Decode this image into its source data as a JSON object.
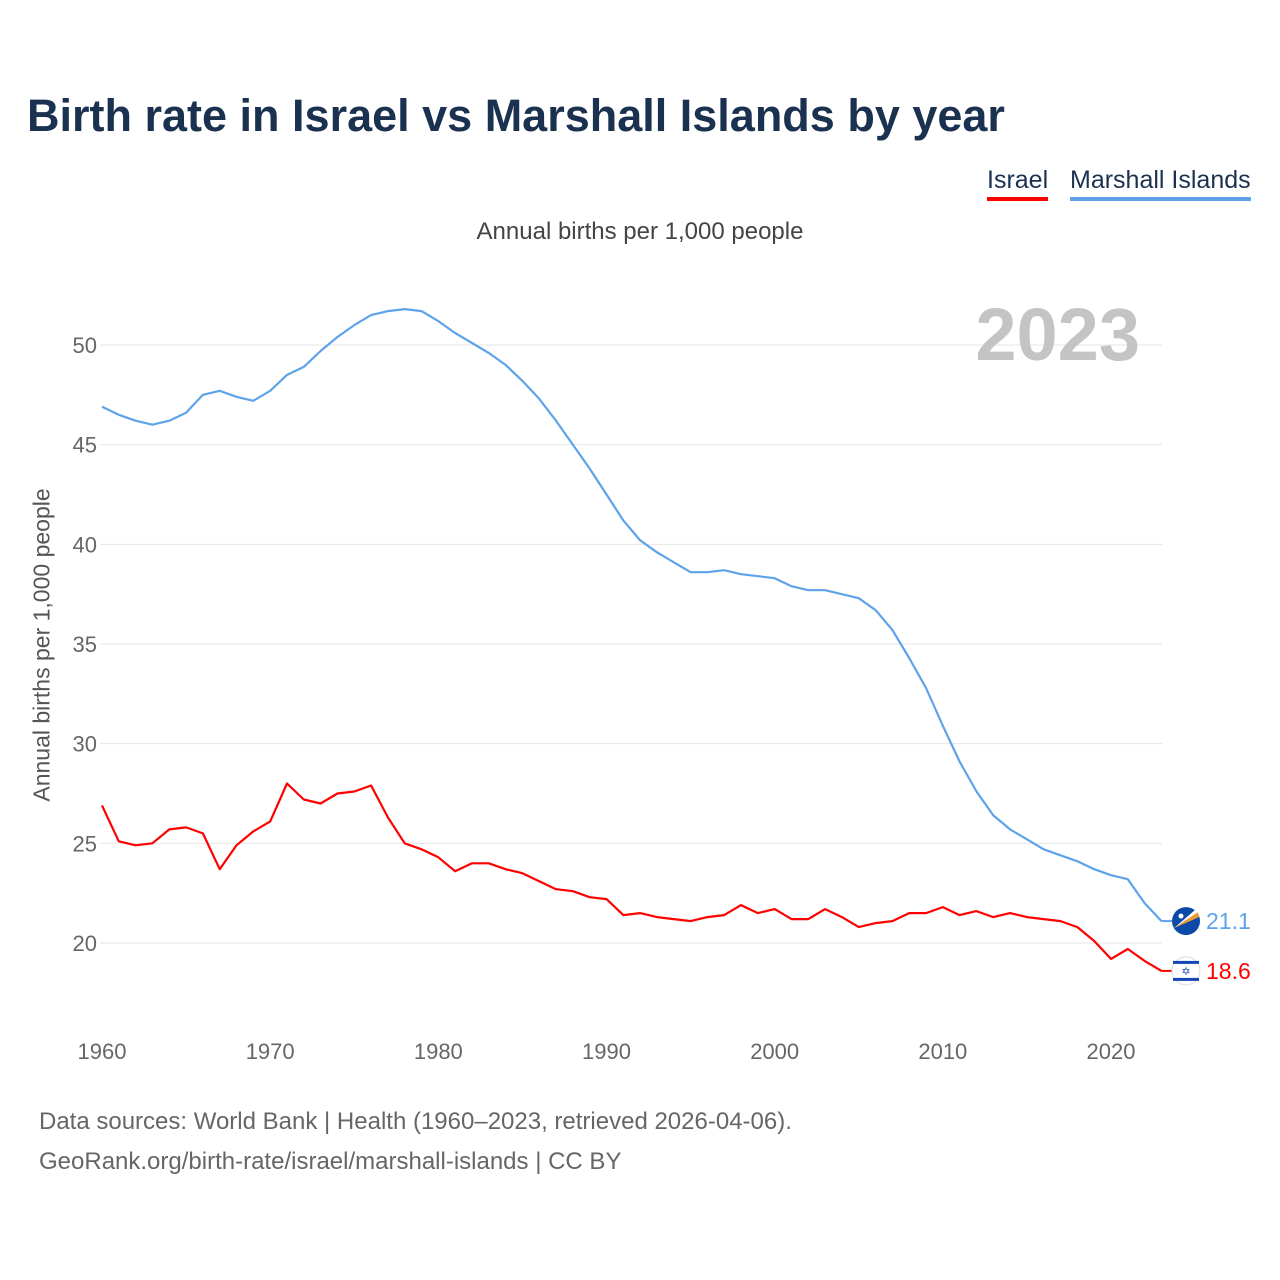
{
  "chart_data": {
    "type": "line",
    "title": "Birth rate in Israel vs Marshall Islands by year",
    "subtitle": "Annual births per 1,000 people",
    "ylabel": "Annual births per 1,000 people",
    "xlabel": "",
    "year_label": "2023",
    "xlim": [
      1960,
      2023
    ],
    "ylim": [
      16,
      53
    ],
    "x_ticks": [
      1960,
      1970,
      1980,
      1990,
      2000,
      2010,
      2020
    ],
    "y_ticks": [
      20,
      25,
      30,
      35,
      40,
      45,
      50
    ],
    "grid": true,
    "legend_position": "top-right",
    "x": [
      1960,
      1961,
      1962,
      1963,
      1964,
      1965,
      1966,
      1967,
      1968,
      1969,
      1970,
      1971,
      1972,
      1973,
      1974,
      1975,
      1976,
      1977,
      1978,
      1979,
      1980,
      1981,
      1982,
      1983,
      1984,
      1985,
      1986,
      1987,
      1988,
      1989,
      1990,
      1991,
      1992,
      1993,
      1994,
      1995,
      1996,
      1997,
      1998,
      1999,
      2000,
      2001,
      2002,
      2003,
      2004,
      2005,
      2006,
      2007,
      2008,
      2009,
      2010,
      2011,
      2012,
      2013,
      2014,
      2015,
      2016,
      2017,
      2018,
      2019,
      2020,
      2021,
      2022,
      2023
    ],
    "series": [
      {
        "name": "Israel",
        "color": "#ff0000",
        "end_label": "18.6",
        "values": [
          26.9,
          25.1,
          24.9,
          25.0,
          25.7,
          25.8,
          25.5,
          23.7,
          24.9,
          25.6,
          26.1,
          28.0,
          27.2,
          27.0,
          27.5,
          27.6,
          27.9,
          26.3,
          25.0,
          24.7,
          24.3,
          23.6,
          24.0,
          24.0,
          23.7,
          23.5,
          23.1,
          22.7,
          22.6,
          22.3,
          22.2,
          21.4,
          21.5,
          21.3,
          21.2,
          21.1,
          21.3,
          21.4,
          21.9,
          21.5,
          21.7,
          21.2,
          21.2,
          21.7,
          21.3,
          20.8,
          21.0,
          21.1,
          21.5,
          21.5,
          21.8,
          21.4,
          21.6,
          21.3,
          21.5,
          21.3,
          21.2,
          21.1,
          20.8,
          20.1,
          19.2,
          19.7,
          19.1,
          18.6
        ]
      },
      {
        "name": "Marshall Islands",
        "color": "#5ea3ea",
        "end_label": "21.1",
        "values": [
          46.9,
          46.5,
          46.2,
          46.0,
          46.2,
          46.6,
          47.5,
          47.7,
          47.4,
          47.2,
          47.7,
          48.5,
          48.9,
          49.7,
          50.4,
          51.0,
          51.5,
          51.7,
          51.8,
          51.7,
          51.2,
          50.6,
          50.1,
          49.6,
          49.0,
          48.2,
          47.3,
          46.2,
          45.0,
          43.8,
          42.5,
          41.2,
          40.2,
          39.6,
          39.1,
          38.6,
          38.6,
          38.7,
          38.5,
          38.4,
          38.3,
          37.9,
          37.7,
          37.7,
          37.5,
          37.3,
          36.7,
          35.7,
          34.3,
          32.8,
          30.9,
          29.1,
          27.6,
          26.4,
          25.7,
          25.2,
          24.7,
          24.4,
          24.1,
          23.7,
          23.4,
          23.2,
          22.0,
          21.1
        ]
      }
    ]
  },
  "footer": {
    "sources": "Data sources: World Bank | Health (1960–2023, retrieved 2026-04-06).",
    "credit": "GeoRank.org/birth-rate/israel/marshall-islands | CC BY"
  }
}
